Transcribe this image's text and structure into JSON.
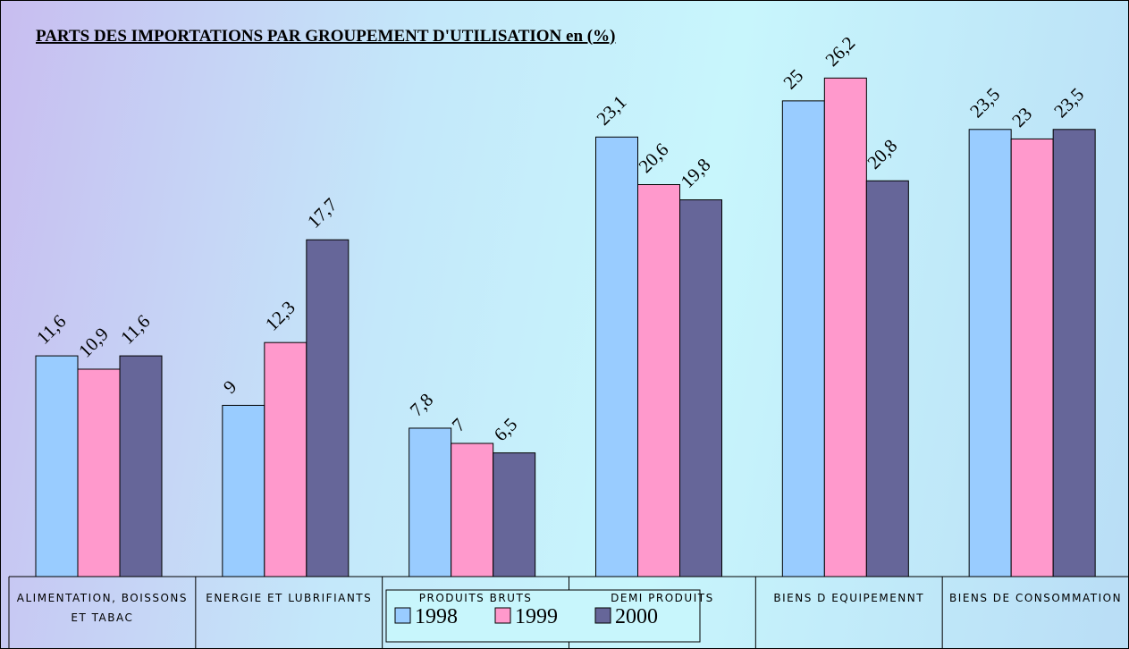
{
  "chart_data": {
    "type": "bar",
    "title": "PARTS  DES IMPORTATIONS PAR GROUPEMENT D'UTILISATION en (%)",
    "categories": [
      "ALIMENTATION, BOISSONS ET TABAC",
      "ENERGIE ET LUBRIFIANTS",
      "PRODUITS BRUTS",
      "DEMI PRODUITS",
      "BIENS D EQUIPEMENNT",
      "BIENS DE CONSOMMATION"
    ],
    "series": [
      {
        "name": "1998",
        "color": "#99ccff",
        "values": [
          11.6,
          9,
          7.8,
          23.1,
          25,
          23.5
        ],
        "value_labels": [
          "11,6",
          "9",
          "7,8",
          "23,1",
          "25",
          "23,5"
        ]
      },
      {
        "name": "1999",
        "color": "#ff99cc",
        "values": [
          10.9,
          12.3,
          7,
          20.6,
          26.2,
          23
        ],
        "value_labels": [
          "10,9",
          "12,3",
          "7",
          "20,6",
          "26,2",
          "23"
        ]
      },
      {
        "name": "2000",
        "color": "#666699",
        "values": [
          11.6,
          17.7,
          6.5,
          19.8,
          20.8,
          23.5
        ],
        "value_labels": [
          "11,6",
          "17,7",
          "6,5",
          "19,8",
          "20,8",
          "23,5"
        ]
      }
    ],
    "ylim": [
      0,
      28
    ],
    "legend": "bottom"
  }
}
